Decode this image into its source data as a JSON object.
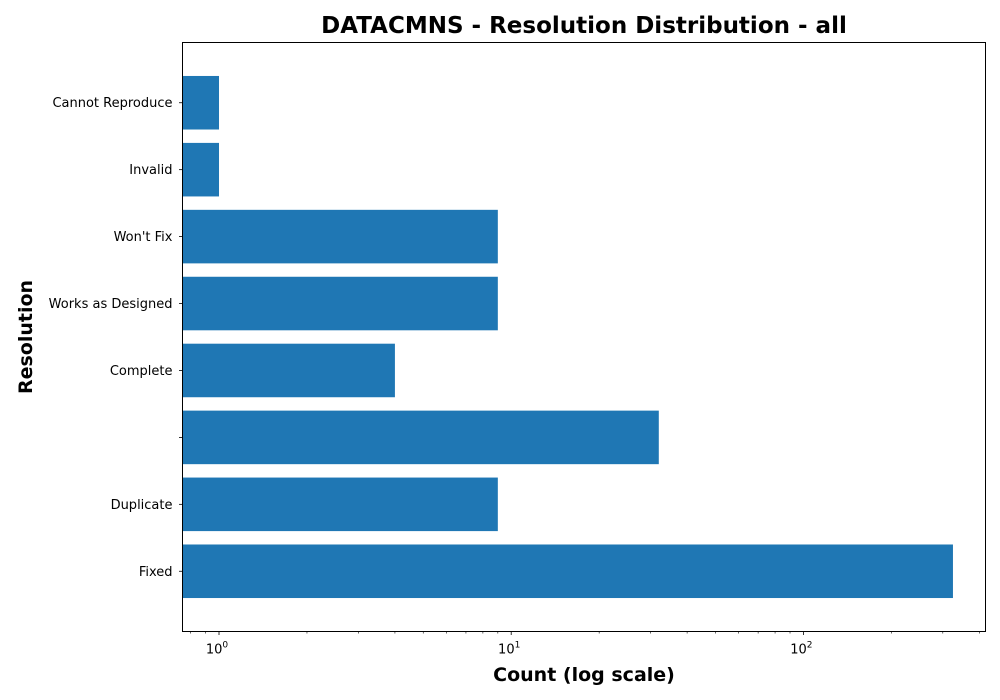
{
  "chart_data": {
    "type": "bar",
    "orientation": "horizontal",
    "title": "DATACMNS - Resolution Distribution - all",
    "xlabel": "Count (log scale)",
    "ylabel": "Resolution",
    "xscale": "log",
    "xlim": [
      0.75,
      420
    ],
    "x_ticks": [
      {
        "base": "10",
        "exp": "0",
        "value": 1
      },
      {
        "base": "10",
        "exp": "1",
        "value": 10
      },
      {
        "base": "10",
        "exp": "2",
        "value": 100
      }
    ],
    "categories": [
      "Fixed",
      "Duplicate",
      "",
      "Complete",
      "Works as Designed",
      "Won't Fix",
      "Invalid",
      "Cannot Reproduce"
    ],
    "values": [
      325,
      9,
      32,
      4,
      9,
      9,
      1,
      1
    ],
    "bar_color": "#1f77b4",
    "grid": false
  }
}
